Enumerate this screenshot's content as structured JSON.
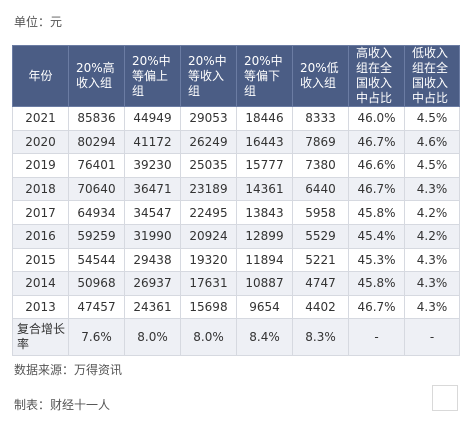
{
  "unit_label": "单位：元",
  "headers": [
    "年份",
    "20%高收入组",
    "20%中等偏上组",
    "20%中等收入组",
    "20%中等偏下组",
    "20%低收入组",
    "高收入组在全国收入中占比",
    "低收入组在全国收入中占比"
  ],
  "rows": [
    [
      "2021",
      "85836",
      "44949",
      "29053",
      "18446",
      "8333",
      "46.0%",
      "4.5%"
    ],
    [
      "2020",
      "80294",
      "41172",
      "26249",
      "16443",
      "7869",
      "46.7%",
      "4.6%"
    ],
    [
      "2019",
      "76401",
      "39230",
      "25035",
      "15777",
      "7380",
      "46.6%",
      "4.5%"
    ],
    [
      "2018",
      "70640",
      "36471",
      "23189",
      "14361",
      "6440",
      "46.7%",
      "4.3%"
    ],
    [
      "2017",
      "64934",
      "34547",
      "22495",
      "13843",
      "5958",
      "45.8%",
      "4.2%"
    ],
    [
      "2016",
      "59259",
      "31990",
      "20924",
      "12899",
      "5529",
      "45.4%",
      "4.2%"
    ],
    [
      "2015",
      "54544",
      "29438",
      "19320",
      "11894",
      "5221",
      "45.3%",
      "4.3%"
    ],
    [
      "2014",
      "50968",
      "26937",
      "17631",
      "10887",
      "4747",
      "45.8%",
      "4.3%"
    ],
    [
      "2013",
      "47457",
      "24361",
      "15698",
      "9654",
      "4402",
      "46.7%",
      "4.3%"
    ]
  ],
  "growth_row": [
    "复合增长率",
    "7.6%",
    "8.0%",
    "8.0%",
    "8.4%",
    "8.3%",
    "-",
    "-"
  ],
  "source": "数据来源：万得资讯",
  "maker": "制表：财经十一人",
  "colors": {
    "header_bg": "#4b5d85",
    "stripe_bg": "#eef0f5"
  }
}
